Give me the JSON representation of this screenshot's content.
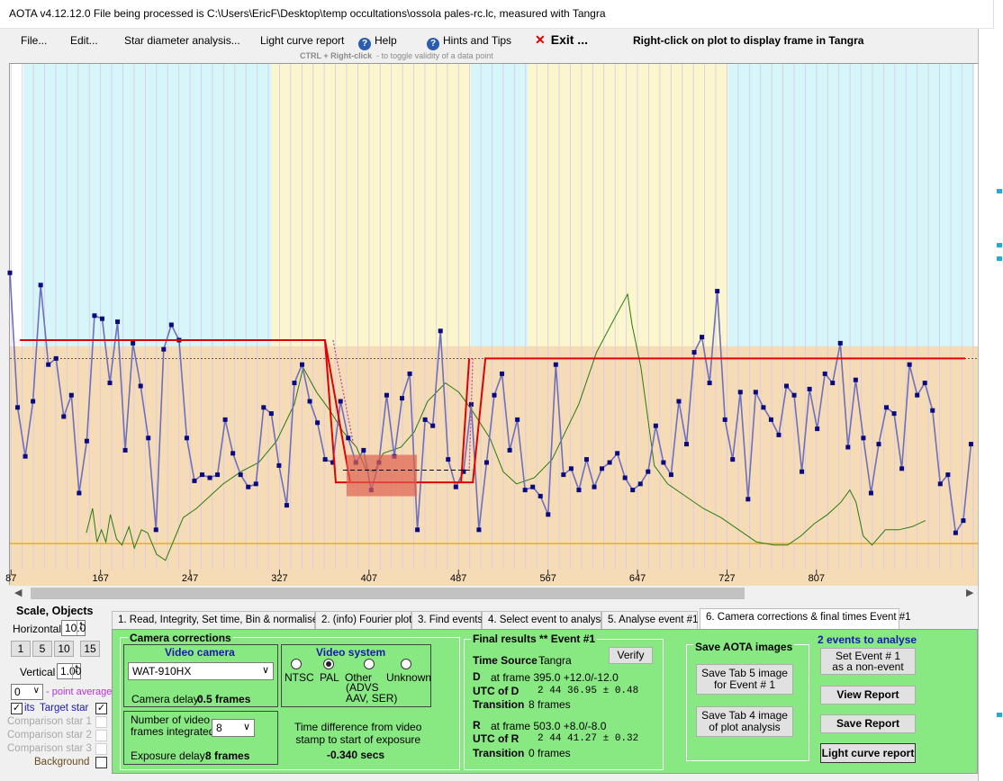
{
  "window": {
    "title": "AOTA v4.12.12.0    File being processed is C:\\Users\\EricF\\Desktop\\temp occultations\\ossola pales-rc.lc, measured with Tangra"
  },
  "menu": {
    "file": "File...",
    "edit": "Edit...",
    "star_diameter": "Star diameter analysis...",
    "light_curve_report": "Light curve report",
    "help": "Help",
    "hints": "Hints and Tips",
    "exit": "Exit ...",
    "right_click_note": "Right-click on plot to display frame in Tangra",
    "ctrl_note_key": "CTRL + Right-click",
    "ctrl_note_text": "-  to toggle validity of a data point"
  },
  "chart_data": {
    "type": "line",
    "x_tick_labels": [
      "87",
      "167",
      "247",
      "327",
      "407",
      "487",
      "567",
      "647",
      "727",
      "807"
    ],
    "x_ticks": [
      87,
      167,
      247,
      327,
      407,
      487,
      567,
      647,
      727,
      807
    ],
    "xlim": [
      86,
      952
    ],
    "event_frames": {
      "D": 395.0,
      "R": 503.0
    },
    "series": [
      {
        "kind": "target",
        "x_start": 86,
        "values": [
          97,
          53,
          37,
          55,
          93,
          67,
          69,
          50,
          57,
          25,
          42,
          83,
          82,
          61,
          81,
          39,
          74,
          60,
          43,
          13,
          72,
          80,
          75,
          43,
          29,
          31,
          30,
          31,
          49,
          38,
          31,
          27,
          28,
          53,
          51,
          34,
          21,
          61,
          67,
          55,
          48,
          36,
          35,
          55,
          43,
          35,
          39,
          26,
          35,
          57,
          37,
          56,
          64,
          13,
          49,
          47,
          78,
          36,
          27,
          32,
          54,
          13,
          35,
          57,
          64,
          39,
          49,
          26,
          27,
          24,
          18,
          67,
          31,
          33,
          26,
          36,
          27,
          33,
          35,
          38,
          30,
          26,
          28,
          32,
          47,
          35,
          31,
          55,
          41,
          71,
          76,
          61,
          91,
          49,
          36,
          58,
          23,
          58,
          53,
          49,
          44,
          60,
          57,
          32,
          59,
          46,
          64,
          61,
          74,
          40,
          62,
          43,
          25,
          41,
          53,
          51,
          33,
          67,
          57,
          61,
          52,
          28,
          31,
          12,
          16,
          41
        ]
      },
      {
        "kind": "comparison",
        "values": []
      }
    ],
    "model": {
      "pre_level": 75,
      "post_level": 69,
      "bottom_level": 8.5
    }
  },
  "left_panel": {
    "scale_title": "Scale,  Objects",
    "horizontal_label": "Horizontal",
    "horizontal_value": "10.0",
    "zoom_buttons": [
      "1",
      "5",
      "10",
      "15"
    ],
    "vertical_label": "Vertical",
    "vertical_value": "1.00",
    "point_avg_value": "0",
    "point_avg_label": "- point average",
    "target_prefix": "its",
    "target_label": "Target star",
    "comp1": "Comparison star 1",
    "comp2": "Comparison star 2",
    "comp3": "Comparison star 3",
    "background": "Background"
  },
  "tabs": [
    "1.  Read, Integrity, Set time, Bin & normalise",
    "2. (info)  Fourier plot",
    "3. Find events",
    "4. Select event to analyse",
    "5. Analyse event #1",
    "6. Camera corrections & final times Event #1"
  ],
  "camera": {
    "title": "Camera corrections",
    "video_camera": "Video camera",
    "camera_value": "WAT-910HX",
    "camera_delay_label": "Camera delay:",
    "camera_delay_value": "0.5 frames",
    "video_system": "Video system",
    "ntsc": "NTSC",
    "pal": "PAL",
    "other": "Other",
    "other_sub": "(ADVS\nAAV, SER)",
    "unknown": "Unknown",
    "frames_integrated_label": "Number of video\nframes integrated",
    "frames_integrated_value": "8",
    "exposure_delay_label": "Exposure delay:",
    "exposure_delay_value": "8 frames",
    "time_diff_label": "Time difference from video\nstamp to start of exposure",
    "time_diff_value": "-0.340 secs"
  },
  "final": {
    "title": "Final results  **  Event #1",
    "verify": "Verify",
    "time_source_label": "Time Source :",
    "time_source_value": "Tangra",
    "d_label": "D",
    "d_frame": "at frame 395.0  +12.0/-12.0",
    "utc_d_label": "UTC of D",
    "utc_d_value": "2  44  36.95  ± 0.48",
    "transition_label": "Transition",
    "transition_d": "8 frames",
    "r_label": "R",
    "r_frame": "at frame 503.0  +8.0/-8.0",
    "utc_r_label": "UTC of R",
    "utc_r_value": "2  44  41.27  ± 0.32",
    "transition_r": "0 frames"
  },
  "save_images": {
    "title": "Save AOTA images",
    "tab5": "Save Tab 5 image\nfor Event # 1",
    "tab4": "Save Tab 4 image\nof plot analysis"
  },
  "events": {
    "count_label": "2  events to analyse",
    "set_event": "Set Event # 1\nas a non-event",
    "view_report": "View Report",
    "save_report": "Save Report",
    "lc_report": "Light curve report"
  },
  "colors": {
    "accent_green": "#88e882",
    "event_red": "#e00000",
    "target_line": "#6f6fbf",
    "target_point": "#0a0a80",
    "comparison_line": "#2a7a10",
    "band_cyan": "#d6f6fa",
    "band_yellow": "#fbf6cd",
    "band_tan": "#f5dcb6"
  }
}
